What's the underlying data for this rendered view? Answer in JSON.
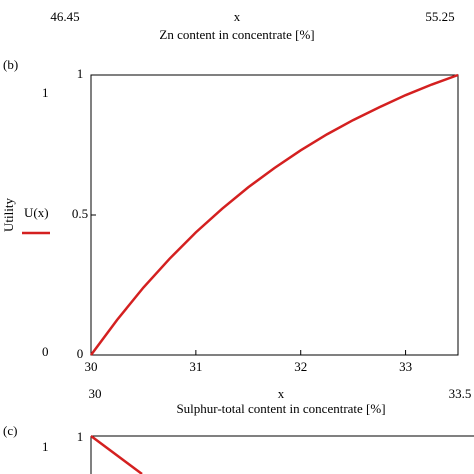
{
  "chart_data": [
    {
      "type": "fragment",
      "x_limit_labels": [
        "46.45",
        "55.25"
      ],
      "x_variable": "x",
      "xlabel": "Zn content in concentrate [%]"
    },
    {
      "type": "line",
      "panel_label": "(b)",
      "ylabel": "Utility",
      "y_limit_labels": [
        "0",
        "1"
      ],
      "x": [
        30,
        30.25,
        30.5,
        30.75,
        31,
        31.25,
        31.5,
        31.75,
        32,
        32.25,
        32.5,
        32.75,
        33,
        33.25,
        33.5
      ],
      "series": [
        {
          "name": "U(x)",
          "color": "#d42020",
          "values": [
            0,
            0.126,
            0.241,
            0.344,
            0.438,
            0.522,
            0.599,
            0.668,
            0.731,
            0.788,
            0.839,
            0.885,
            0.928,
            0.966,
            1
          ]
        }
      ],
      "xlim": [
        30,
        33.5
      ],
      "xticks": [
        30,
        31,
        32,
        33
      ],
      "ylim": [
        0,
        1
      ],
      "yticks": [
        0,
        0.5,
        1
      ],
      "x_limit_labels": [
        "30",
        "33.5"
      ],
      "x_variable": "x",
      "xlabel": "Sulphur-total content in concentrate [%]"
    },
    {
      "type": "fragment",
      "panel_label": "(c)",
      "y_limit_labels": [
        "1"
      ],
      "yticks": [
        1
      ]
    }
  ]
}
